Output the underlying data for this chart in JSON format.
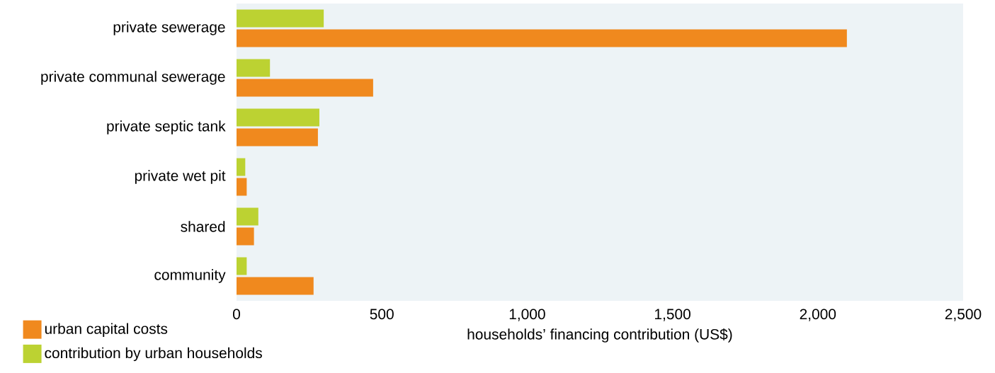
{
  "chart_data": {
    "type": "bar",
    "orientation": "horizontal",
    "xlabel": "households’ financing contribution (US$)",
    "categories": [
      "private sewerage",
      "private communal sewerage",
      "private septic tank",
      "private wet pit",
      "shared",
      "community"
    ],
    "series": [
      {
        "name": "urban capital costs",
        "color": "#f0891e",
        "values": [
          2100,
          470,
          280,
          35,
          60,
          265
        ]
      },
      {
        "name": "contribution by urban households",
        "color": "#bcd232",
        "values": [
          300,
          115,
          285,
          30,
          75,
          35
        ]
      }
    ],
    "xlim": [
      0,
      2500
    ],
    "xticks": [
      0,
      500,
      {
        "value": 1000,
        "label": "1,000"
      },
      {
        "value": 1500,
        "label": "1,500"
      },
      {
        "value": 2000,
        "label": "2,000"
      },
      {
        "value": 2500,
        "label": "2,500"
      }
    ],
    "legend": "bottom left"
  }
}
